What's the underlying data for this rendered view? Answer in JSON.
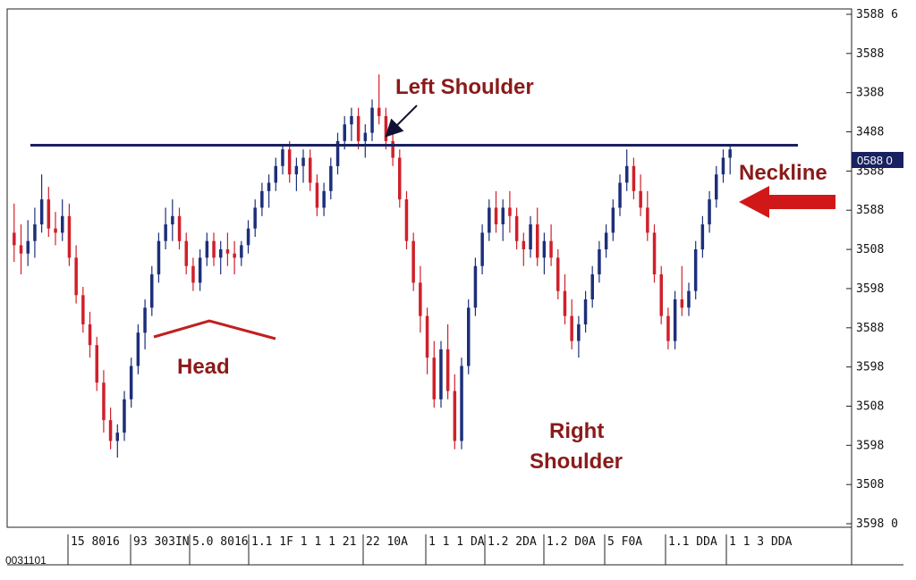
{
  "chart_data": {
    "type": "candlestick",
    "title": "",
    "colors": {
      "bull": "#1d2f7a",
      "bear": "#d0202a",
      "neckline": "#1a2160",
      "annotation_text": "#8b1a1a",
      "head_marker": "#c0201f",
      "neckline_arrow": "#d11818",
      "price_tag_bg": "#1a2160"
    },
    "y_ticks": [
      "3588 6",
      "3588",
      "3388",
      "3488",
      "3588",
      "3588",
      "3508",
      "3598",
      "3588",
      "3598",
      "3508",
      "3598",
      "3508",
      "3598 0"
    ],
    "current_price_label": "0588 0",
    "x_ticks": [
      "15 8016",
      "93 303IN",
      "5.0 8016",
      "1.1 1F 1 1 1 21",
      "22 10A",
      "1 1 1 DA",
      "1.2 2DA",
      "1.2 D0A",
      "5 F0A",
      "1.1 DDA",
      "1 1 3 DDA"
    ],
    "x_corner_label": "0031101",
    "annotations": {
      "left_shoulder": "Left Shoulder",
      "head": "Head",
      "right_shoulder_line1": "Right",
      "right_shoulder_line2": "Shoulder",
      "neckline": "Neckline"
    },
    "y_domain": [
      0,
      100
    ],
    "neckline_value": 81,
    "candles": [
      [
        60,
        67,
        53,
        57
      ],
      [
        57,
        62,
        50,
        55
      ],
      [
        55,
        63,
        52,
        58
      ],
      [
        58,
        66,
        54,
        62
      ],
      [
        62,
        74,
        60,
        68
      ],
      [
        68,
        71,
        59,
        61
      ],
      [
        61,
        65,
        57,
        60
      ],
      [
        60,
        68,
        58,
        64
      ],
      [
        64,
        67,
        52,
        54
      ],
      [
        54,
        57,
        43,
        45
      ],
      [
        45,
        47,
        36,
        38
      ],
      [
        38,
        41,
        30,
        33
      ],
      [
        33,
        35,
        22,
        24
      ],
      [
        24,
        27,
        12,
        15
      ],
      [
        15,
        18,
        8,
        10
      ],
      [
        10,
        14,
        6,
        12
      ],
      [
        12,
        22,
        10,
        20
      ],
      [
        20,
        30,
        18,
        28
      ],
      [
        28,
        38,
        26,
        36
      ],
      [
        36,
        44,
        32,
        42
      ],
      [
        42,
        52,
        40,
        50
      ],
      [
        50,
        60,
        48,
        58
      ],
      [
        58,
        66,
        56,
        62
      ],
      [
        62,
        68,
        58,
        64
      ],
      [
        64,
        66,
        56,
        58
      ],
      [
        58,
        60,
        50,
        52
      ],
      [
        52,
        54,
        46,
        48
      ],
      [
        48,
        56,
        46,
        54
      ],
      [
        54,
        60,
        52,
        58
      ],
      [
        58,
        60,
        52,
        54
      ],
      [
        54,
        58,
        50,
        56
      ],
      [
        56,
        60,
        52,
        55
      ],
      [
        55,
        58,
        50,
        54
      ],
      [
        54,
        58,
        52,
        57
      ],
      [
        57,
        63,
        55,
        61
      ],
      [
        61,
        68,
        59,
        66
      ],
      [
        66,
        72,
        64,
        70
      ],
      [
        70,
        74,
        66,
        72
      ],
      [
        72,
        78,
        70,
        76
      ],
      [
        76,
        81,
        74,
        80
      ],
      [
        80,
        82,
        72,
        74
      ],
      [
        74,
        78,
        70,
        76
      ],
      [
        76,
        80,
        72,
        78
      ],
      [
        78,
        80,
        70,
        72
      ],
      [
        72,
        74,
        64,
        66
      ],
      [
        66,
        72,
        64,
        70
      ],
      [
        70,
        78,
        68,
        76
      ],
      [
        76,
        84,
        74,
        82
      ],
      [
        82,
        88,
        80,
        86
      ],
      [
        86,
        90,
        82,
        88
      ],
      [
        88,
        90,
        80,
        82
      ],
      [
        82,
        86,
        78,
        84
      ],
      [
        84,
        92,
        82,
        90
      ],
      [
        90,
        98,
        86,
        88
      ],
      [
        88,
        90,
        80,
        82
      ],
      [
        82,
        86,
        76,
        78
      ],
      [
        78,
        80,
        66,
        68
      ],
      [
        68,
        70,
        56,
        58
      ],
      [
        58,
        60,
        46,
        48
      ],
      [
        48,
        52,
        36,
        40
      ],
      [
        40,
        42,
        26,
        30
      ],
      [
        30,
        34,
        18,
        20
      ],
      [
        20,
        34,
        18,
        32
      ],
      [
        32,
        38,
        20,
        22
      ],
      [
        22,
        26,
        8,
        10
      ],
      [
        10,
        30,
        8,
        28
      ],
      [
        28,
        44,
        26,
        42
      ],
      [
        42,
        54,
        40,
        52
      ],
      [
        52,
        62,
        50,
        60
      ],
      [
        60,
        68,
        58,
        66
      ],
      [
        66,
        70,
        60,
        62
      ],
      [
        62,
        68,
        58,
        66
      ],
      [
        66,
        70,
        60,
        64
      ],
      [
        64,
        66,
        56,
        58
      ],
      [
        58,
        60,
        52,
        56
      ],
      [
        56,
        64,
        54,
        62
      ],
      [
        62,
        66,
        52,
        54
      ],
      [
        54,
        60,
        50,
        58
      ],
      [
        58,
        62,
        52,
        54
      ],
      [
        54,
        56,
        44,
        46
      ],
      [
        46,
        50,
        38,
        40
      ],
      [
        40,
        44,
        32,
        34
      ],
      [
        34,
        40,
        30,
        38
      ],
      [
        38,
        46,
        36,
        44
      ],
      [
        44,
        52,
        42,
        50
      ],
      [
        50,
        58,
        48,
        56
      ],
      [
        56,
        62,
        54,
        60
      ],
      [
        60,
        68,
        58,
        66
      ],
      [
        66,
        74,
        64,
        72
      ],
      [
        72,
        80,
        70,
        76
      ],
      [
        76,
        78,
        68,
        70
      ],
      [
        70,
        74,
        64,
        66
      ],
      [
        66,
        70,
        58,
        60
      ],
      [
        60,
        62,
        48,
        50
      ],
      [
        50,
        52,
        38,
        40
      ],
      [
        40,
        42,
        32,
        34
      ],
      [
        34,
        46,
        32,
        44
      ],
      [
        44,
        52,
        40,
        42
      ],
      [
        42,
        48,
        40,
        46
      ],
      [
        46,
        58,
        44,
        56
      ],
      [
        56,
        64,
        54,
        62
      ],
      [
        62,
        70,
        60,
        68
      ],
      [
        68,
        76,
        66,
        74
      ],
      [
        74,
        80,
        72,
        78
      ],
      [
        78,
        81,
        74,
        80
      ]
    ]
  }
}
